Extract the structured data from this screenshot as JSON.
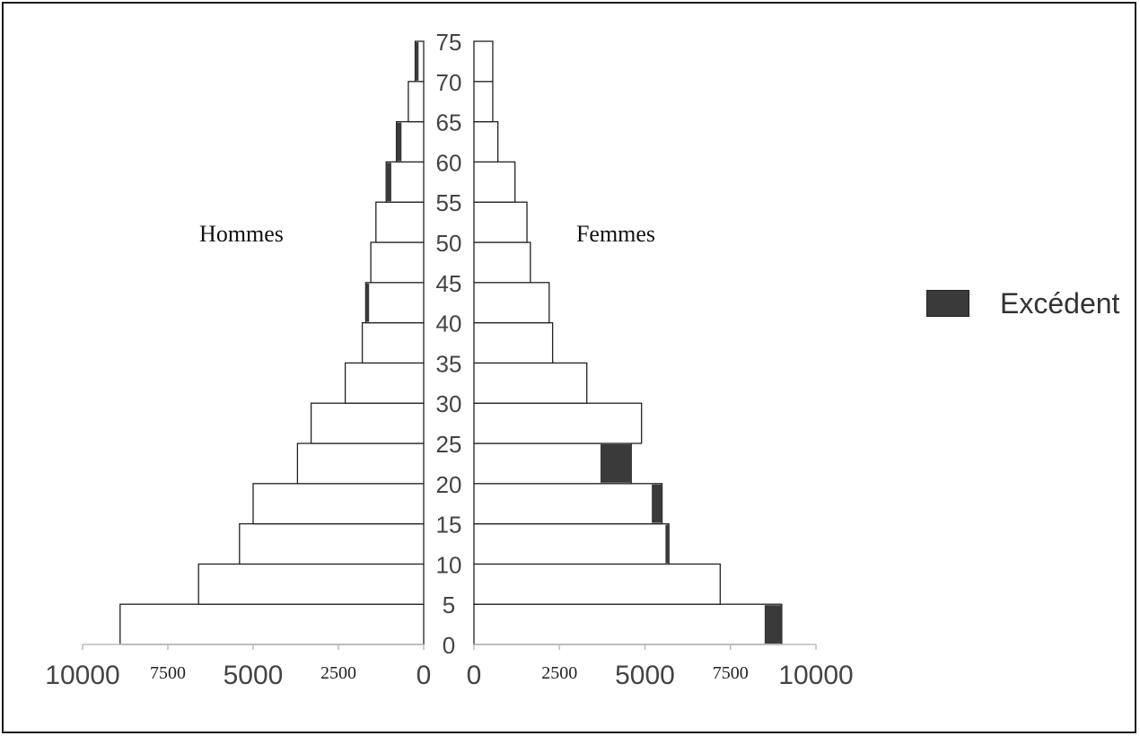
{
  "chart_data": {
    "type": "bar",
    "subtype": "population-pyramid",
    "age_groups": [
      0,
      5,
      10,
      15,
      20,
      25,
      30,
      35,
      40,
      45,
      50,
      55,
      60,
      65,
      70
    ],
    "age_tick_labels": [
      "0",
      "5",
      "10",
      "15",
      "20",
      "25",
      "30",
      "35",
      "40",
      "45",
      "50",
      "55",
      "60",
      "65",
      "70",
      "75"
    ],
    "left_label": "Hommes",
    "right_label": "Femmes",
    "series": [
      {
        "name": "Hommes",
        "values": [
          8900,
          6600,
          5400,
          5000,
          3700,
          3300,
          2300,
          1800,
          1700,
          1550,
          1400,
          1100,
          800,
          450,
          250
        ],
        "excess": [
          0,
          0,
          0,
          0,
          0,
          0,
          0,
          0,
          100,
          0,
          0,
          150,
          150,
          0,
          100
        ]
      },
      {
        "name": "Femmes",
        "values": [
          9000,
          7200,
          5700,
          5500,
          4600,
          4900,
          3300,
          2300,
          2200,
          1650,
          1550,
          1200,
          700,
          550,
          550
        ],
        "excess": [
          500,
          0,
          100,
          300,
          900,
          0,
          0,
          0,
          0,
          0,
          0,
          0,
          0,
          0,
          0
        ]
      }
    ],
    "legend": {
      "label": "Excédent",
      "color": "#3a3a3a",
      "position": "right"
    },
    "xlim": [
      0,
      10000
    ],
    "x_ticks_left": [
      {
        "label": "10000",
        "value": 10000,
        "big": true
      },
      {
        "label": "7500",
        "value": 7500,
        "big": false
      },
      {
        "label": "5000",
        "value": 5000,
        "big": true
      },
      {
        "label": "2500",
        "value": 2500,
        "big": false
      },
      {
        "label": "0",
        "value": 0,
        "big": true
      }
    ],
    "x_ticks_right": [
      {
        "label": "0",
        "value": 0,
        "big": true
      },
      {
        "label": "2500",
        "value": 2500,
        "big": false
      },
      {
        "label": "5000",
        "value": 5000,
        "big": true
      },
      {
        "label": "7500",
        "value": 7500,
        "big": false
      },
      {
        "label": "10000",
        "value": 10000,
        "big": true
      }
    ],
    "bar_fill": "#ffffff",
    "bar_stroke": "#222222",
    "grid": false
  }
}
